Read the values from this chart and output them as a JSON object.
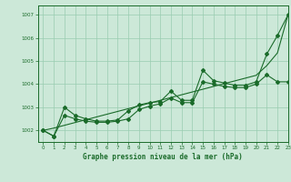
{
  "title": "Graphe pression niveau de la mer (hPa)",
  "bg_color": "#cce8d8",
  "grid_color": "#99ccb0",
  "line_color": "#1a6b2a",
  "xlim": [
    -0.5,
    23
  ],
  "ylim": [
    1001.5,
    1007.4
  ],
  "yticks": [
    1002,
    1003,
    1004,
    1005,
    1006,
    1007
  ],
  "xtick_labels": [
    "0",
    "1",
    "2",
    "3",
    "4",
    "5",
    "6",
    "7",
    "8",
    "9",
    "10",
    "11",
    "12",
    "13",
    "14",
    "15",
    "16",
    "17",
    "18",
    "19",
    "20",
    "21",
    "22",
    "23"
  ],
  "xticks": [
    0,
    1,
    2,
    3,
    4,
    5,
    6,
    7,
    8,
    9,
    10,
    11,
    12,
    13,
    14,
    15,
    16,
    17,
    18,
    19,
    20,
    21,
    22,
    23
  ],
  "line_main": [
    1002.0,
    1001.75,
    1003.0,
    1002.65,
    1002.5,
    1002.4,
    1002.4,
    1002.45,
    1002.85,
    1003.1,
    1003.2,
    1003.25,
    1003.7,
    1003.3,
    1003.3,
    1004.6,
    1004.15,
    1004.05,
    1003.95,
    1003.95,
    1004.1,
    1005.3,
    1006.1,
    1007.0
  ],
  "line_lower": [
    1002.0,
    1001.75,
    1002.65,
    1002.5,
    1002.4,
    1002.35,
    1002.35,
    1002.4,
    1002.5,
    1002.9,
    1003.05,
    1003.15,
    1003.4,
    1003.2,
    1003.2,
    1004.1,
    1004.0,
    1003.9,
    1003.85,
    1003.85,
    1004.0,
    1004.4,
    1004.1,
    1004.1
  ],
  "line_straight": [
    1002.0,
    1002.1,
    1002.22,
    1002.34,
    1002.46,
    1002.58,
    1002.7,
    1002.82,
    1002.94,
    1003.06,
    1003.18,
    1003.3,
    1003.42,
    1003.54,
    1003.66,
    1003.78,
    1003.9,
    1004.02,
    1004.14,
    1004.26,
    1004.38,
    1004.8,
    1005.35,
    1007.0
  ]
}
